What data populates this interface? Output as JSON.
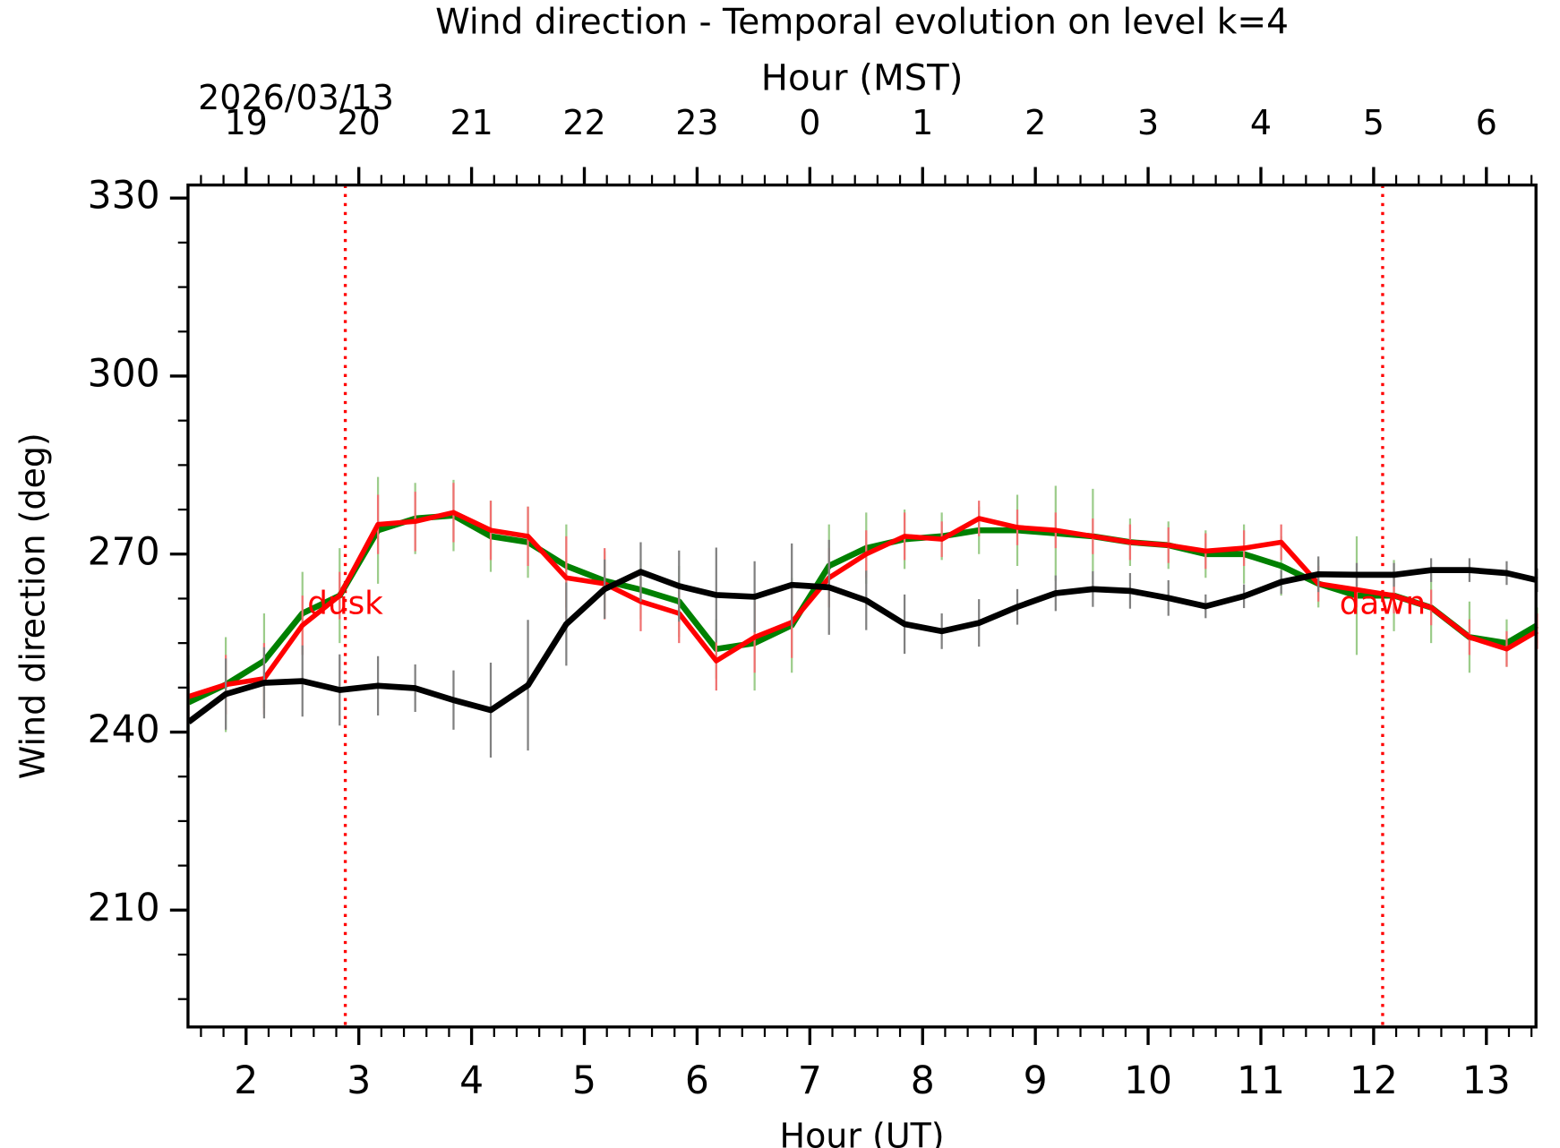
{
  "chart_data": {
    "type": "line",
    "title": "Wind direction - Temporal evolution on level k=4",
    "x2_label": "Hour (MST)",
    "date": "2026/03/13",
    "x_label": "Hour (UT)",
    "y_label": "Wind direction (deg)",
    "xlim": [
      1.485,
      13.44
    ],
    "ylim": [
      190.3,
      332.2
    ],
    "xticks": [
      2,
      3,
      4,
      5,
      6,
      7,
      8,
      9,
      10,
      11,
      12,
      13
    ],
    "x2ticks": [
      {
        "value": 2,
        "label": "19"
      },
      {
        "value": 3,
        "label": "20"
      },
      {
        "value": 4,
        "label": "21"
      },
      {
        "value": 5,
        "label": "22"
      },
      {
        "value": 6,
        "label": "23"
      },
      {
        "value": 7,
        "label": "0"
      },
      {
        "value": 8,
        "label": "1"
      },
      {
        "value": 9,
        "label": "2"
      },
      {
        "value": 10,
        "label": "3"
      },
      {
        "value": 11,
        "label": "4"
      },
      {
        "value": 12,
        "label": "5"
      },
      {
        "value": 13,
        "label": "6"
      }
    ],
    "xminorticks": [
      1.6,
      1.8,
      2.2,
      2.4,
      2.6,
      2.8,
      3.2,
      3.4,
      3.6,
      3.8,
      4.2,
      4.4,
      4.6,
      4.8,
      5.2,
      5.4,
      5.6,
      5.8,
      6.2,
      6.4,
      6.6,
      6.8,
      7.2,
      7.4,
      7.6,
      7.8,
      8.2,
      8.4,
      8.6,
      8.8,
      9.2,
      9.4,
      9.6,
      9.8,
      10.2,
      10.4,
      10.6,
      10.8,
      11.2,
      11.4,
      11.6,
      11.8,
      12.2,
      12.4,
      12.6,
      12.8,
      13.2,
      13.4
    ],
    "yticks": [
      210,
      240,
      270,
      300,
      330
    ],
    "yminorticks": [
      195,
      202.5,
      217.5,
      225,
      232.5,
      247.5,
      255,
      262.5,
      277.5,
      285,
      292.5,
      307.5,
      315,
      322.5
    ],
    "vlines": [
      {
        "x": 2.88,
        "label": "dusk",
        "color": "#ff0000"
      },
      {
        "x": 12.08,
        "label": "dawn",
        "color": "#ff0000"
      }
    ],
    "x": [
      1.49,
      1.82,
      2.16,
      2.5,
      2.83,
      3.17,
      3.5,
      3.84,
      4.17,
      4.5,
      4.84,
      5.18,
      5.5,
      5.84,
      6.17,
      6.51,
      6.84,
      7.17,
      7.5,
      7.84,
      8.17,
      8.5,
      8.84,
      9.18,
      9.51,
      9.84,
      10.18,
      10.51,
      10.85,
      11.18,
      11.51,
      11.85,
      12.18,
      12.51,
      12.85,
      13.18,
      13.45
    ],
    "series": [
      {
        "color": "#008000",
        "error_color": "#9ccc8a",
        "width": 6,
        "values": [
          245,
          248,
          252,
          260,
          263,
          274,
          276,
          276.5,
          273,
          272,
          268,
          265.5,
          264,
          262,
          254,
          255,
          258,
          268,
          271,
          272.5,
          273,
          274,
          274,
          273.5,
          273,
          272,
          271.5,
          270,
          270,
          268,
          265,
          263,
          263,
          261,
          256,
          255,
          258
        ],
        "errors": [
          8,
          8,
          8,
          7,
          8,
          9,
          6,
          6,
          6,
          6,
          7,
          5,
          5,
          6,
          5,
          8,
          8,
          7,
          6,
          5,
          4,
          4,
          6,
          8,
          8,
          4,
          4,
          4,
          5,
          5,
          4,
          10,
          6,
          6,
          6,
          4,
          3
        ]
      },
      {
        "color": "#ff0000",
        "error_color": "#f07070",
        "width": 5,
        "values": [
          246,
          248,
          249,
          258,
          263,
          275,
          275.5,
          277,
          274,
          273,
          266,
          265,
          262,
          260,
          252,
          256,
          258.5,
          266,
          270,
          273,
          272.5,
          276,
          274.5,
          274,
          273,
          272,
          271.5,
          270.5,
          271,
          272,
          265,
          264,
          263,
          261,
          256,
          254,
          257
        ],
        "errors": [
          4,
          5,
          6,
          5,
          4,
          5,
          5,
          5,
          5,
          5,
          7,
          6,
          5,
          5,
          5,
          6,
          6,
          5,
          4,
          4,
          3,
          3,
          3,
          3,
          3,
          3,
          3,
          3,
          3,
          3,
          3,
          3,
          3,
          3,
          3,
          3,
          3
        ]
      },
      {
        "color": "#000000",
        "error_color": "#808080",
        "width": 6,
        "values": [
          241.7,
          246.4,
          248.3,
          248.6,
          247.1,
          247.8,
          247.4,
          245.4,
          243.7,
          247.9,
          258.2,
          264.1,
          267,
          264.6,
          263.1,
          262.8,
          264.8,
          264.4,
          262.2,
          258.2,
          257,
          258.4,
          261.1,
          263.4,
          264.1,
          263.8,
          262.6,
          261.2,
          262.9,
          265.3,
          266.6,
          266.5,
          266.5,
          267.3,
          267.3,
          266.8,
          265.6
        ],
        "errors": [
          6,
          6,
          6,
          6,
          6,
          5,
          4,
          5,
          8,
          11,
          7,
          5,
          5,
          6,
          8,
          6,
          7,
          8,
          5,
          5,
          3,
          4,
          3,
          3,
          3,
          3,
          3,
          2,
          2,
          2,
          3,
          2,
          2,
          2,
          2,
          2,
          2
        ]
      }
    ]
  }
}
